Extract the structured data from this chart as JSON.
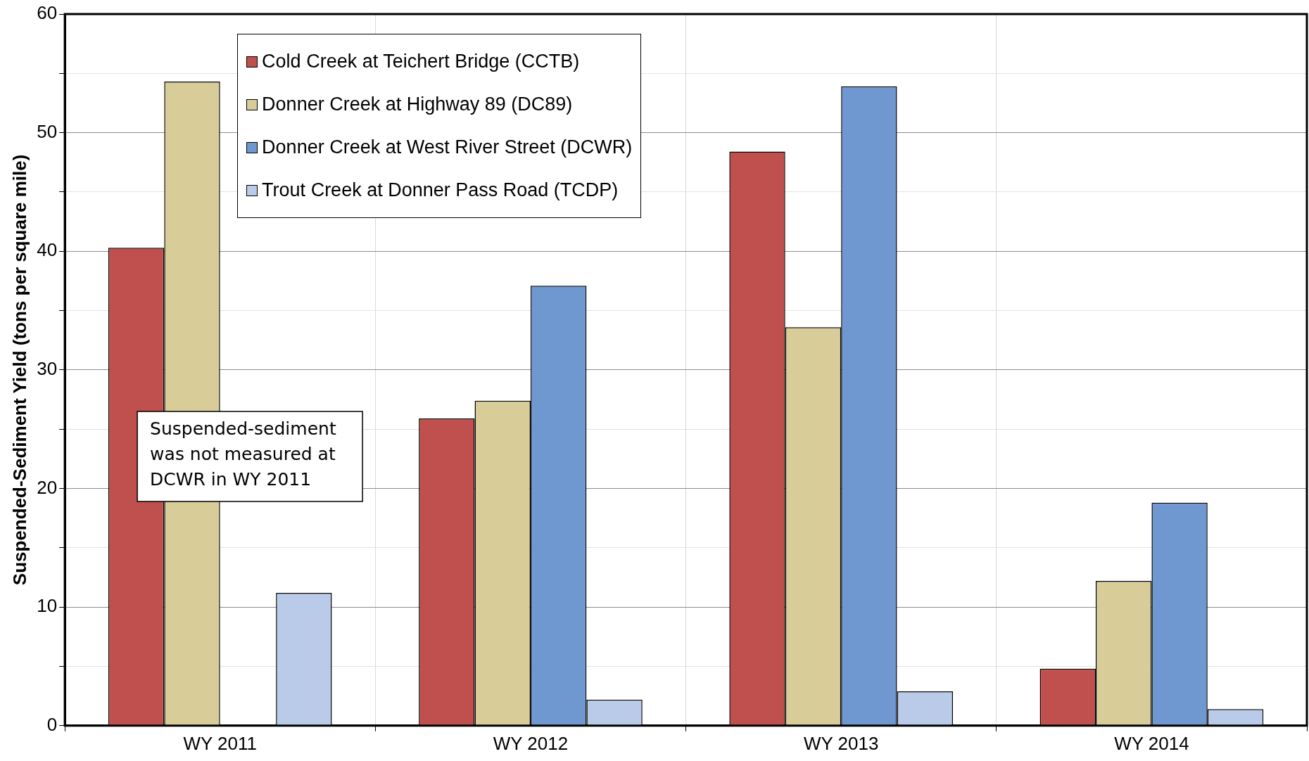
{
  "chart_data": {
    "type": "bar",
    "ylabel": "Suspended-Sediment Yield (tons per square mile)",
    "categories": [
      "WY 2011",
      "WY 2012",
      "WY 2013",
      "WY 2014"
    ],
    "series": [
      {
        "name": "Cold Creek at Teichert Bridge (CCTB)",
        "color": "#c0504d",
        "values": [
          40.3,
          25.9,
          48.4,
          4.8
        ]
      },
      {
        "name": "Donner Creek at Highway 89 (DC89)",
        "color": "#d8cc98",
        "values": [
          54.3,
          27.4,
          33.6,
          12.2
        ]
      },
      {
        "name": "Donner Creek at West River Street (DCWR)",
        "color": "#6f97d0",
        "values": [
          null,
          37.1,
          53.9,
          18.8
        ]
      },
      {
        "name": "Trout Creek at Donner Pass Road (TCDP)",
        "color": "#b9cbe9",
        "values": [
          11.2,
          2.2,
          2.9,
          1.4
        ]
      }
    ],
    "ylim": [
      0,
      60
    ],
    "yticks": [
      0,
      {
        "value": 5,
        "label": null
      },
      10,
      {
        "value": 15,
        "label": null
      },
      20,
      {
        "value": 25,
        "label": null
      },
      30,
      {
        "value": 35,
        "label": null
      },
      40,
      {
        "value": 45,
        "label": null
      },
      50,
      {
        "value": 55,
        "label": null
      },
      60
    ],
    "grid": true,
    "legend": "top left",
    "annotations": [
      "Suspended-sediment was not measured at DCWR in WY 2011"
    ]
  }
}
